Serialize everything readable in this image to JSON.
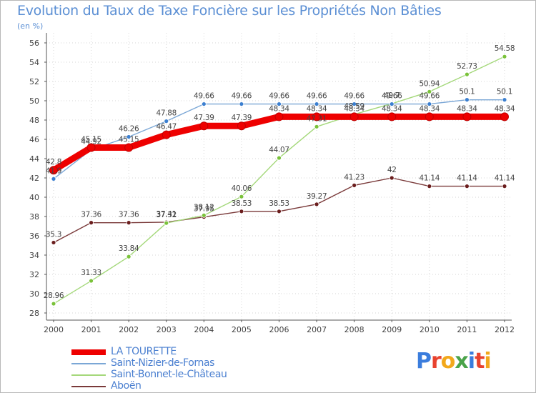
{
  "header": {
    "title": "Evolution du Taux de Taxe Foncière sur les Propriétés Non Bâties",
    "unit": "(en %)"
  },
  "logo": {
    "letters": [
      "P",
      "r",
      "o",
      "x",
      "i",
      "t",
      "i"
    ],
    "colors": [
      "#3b7ddd",
      "#e8432f",
      "#f2a81c",
      "#4aa34a",
      "#3b7ddd",
      "#e8432f",
      "#f2a81c"
    ]
  },
  "chart_data": {
    "type": "line",
    "title": "Evolution du Taux de Taxe Foncière sur les Propriétés Non Bâties",
    "ylabel": "(en %)",
    "xlabel": "",
    "ylim": [
      28,
      56
    ],
    "yticks": [
      28,
      30,
      32,
      34,
      36,
      38,
      40,
      42,
      44,
      46,
      48,
      50,
      52,
      54,
      56
    ],
    "categories": [
      "2000",
      "2001",
      "2002",
      "2003",
      "2004",
      "2005",
      "2006",
      "2007",
      "2008",
      "2009",
      "2010",
      "2011",
      "2012"
    ],
    "grid": true,
    "series": [
      {
        "name": "LA TOURETTE",
        "color": "#ee0000",
        "markerColor": "#ee0000",
        "values": [
          42.8,
          45.15,
          45.15,
          46.47,
          47.39,
          47.39,
          48.34,
          48.34,
          48.34,
          48.34,
          48.34,
          48.34,
          48.34
        ],
        "labels": [
          "42.8",
          "45.15",
          "45.15",
          "46.47",
          "47.39",
          "47.39",
          "48.34",
          "48.34",
          "48.34",
          "48.34",
          "48.34",
          "48.34",
          "48.34"
        ]
      },
      {
        "name": "Saint-Nizier-de-Fornas",
        "color": "#7ba7d6",
        "markerColor": "#3b7fd0",
        "values": [
          41.9,
          44.92,
          46.26,
          47.88,
          49.66,
          49.66,
          49.66,
          49.66,
          49.66,
          49.66,
          49.66,
          50.1,
          50.1
        ],
        "labels": [
          "41.9",
          "44.92",
          "46.26",
          "47.88",
          "49.66",
          "49.66",
          "49.66",
          "49.66",
          "49.66",
          "49.66",
          "49.66",
          "50.1",
          "50.1"
        ]
      },
      {
        "name": "Saint-Bonnet-le-Château",
        "color": "#a4d87a",
        "markerColor": "#7ac23a",
        "values": [
          28.96,
          31.33,
          33.84,
          37.32,
          38.12,
          40.06,
          44.07,
          47.31,
          48.59,
          49.7,
          50.94,
          52.73,
          54.58
        ],
        "labels": [
          "28.96",
          "31.33",
          "33.84",
          "37.32",
          "38.12",
          "40.06",
          "44.07",
          "47.31",
          "48.59",
          "49.7",
          "50.94",
          "52.73",
          "54.58"
        ]
      },
      {
        "name": "Aboën",
        "color": "#7a3a3a",
        "markerColor": "#6b1e1e",
        "values": [
          35.3,
          37.36,
          37.36,
          37.41,
          37.95,
          38.53,
          38.53,
          39.27,
          41.23,
          42,
          41.14,
          41.14,
          41.14
        ],
        "labels": [
          "35.3",
          "37.36",
          "37.36",
          "37.41",
          "37.95",
          "38.53",
          "38.53",
          "39.27",
          "41.23",
          "42",
          "41.14",
          "41.14",
          "41.14"
        ]
      }
    ]
  }
}
